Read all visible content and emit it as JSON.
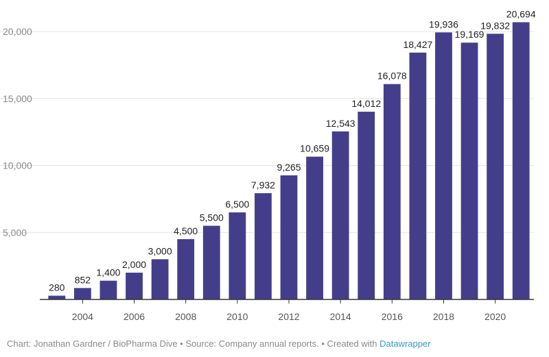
{
  "chart_data": {
    "type": "bar",
    "title": "",
    "xlabel": "",
    "ylabel": "",
    "categories": [
      "2003",
      "2004",
      "2005",
      "2006",
      "2007",
      "2008",
      "2009",
      "2010",
      "2011",
      "2012",
      "2013",
      "2014",
      "2015",
      "2016",
      "2017",
      "2018",
      "2019",
      "2020",
      "2021"
    ],
    "values": [
      280,
      852,
      1400,
      2000,
      3000,
      4500,
      5500,
      6500,
      7932,
      9265,
      10659,
      12543,
      14012,
      16078,
      18427,
      19936,
      19169,
      19832,
      20694
    ],
    "value_labels": [
      "280",
      "852",
      "1,400",
      "2,000",
      "3,000",
      "4,500",
      "5,500",
      "6,500",
      "7,932",
      "9,265",
      "10,659",
      "12,543",
      "14,012",
      "16,078",
      "18,427",
      "19,936",
      "19,169",
      "19,832",
      "20,694"
    ],
    "ylim": [
      0,
      20000
    ],
    "yticks": [
      5000,
      10000,
      15000,
      20000
    ],
    "ytick_labels": [
      "5,000",
      "10,000",
      "15,000",
      "20,000"
    ],
    "xtick_labels": [
      "2004",
      "2006",
      "2008",
      "2010",
      "2012",
      "2014",
      "2016",
      "2018",
      "2020"
    ],
    "grid": true,
    "bar_color": "#443e8a"
  },
  "footer": {
    "credit": "Chart: Jonathan Gardner / BioPharma Dive • Source: Company annual reports. • Created with ",
    "link_text": "Datawrapper",
    "link_color": "#3e97c9"
  }
}
